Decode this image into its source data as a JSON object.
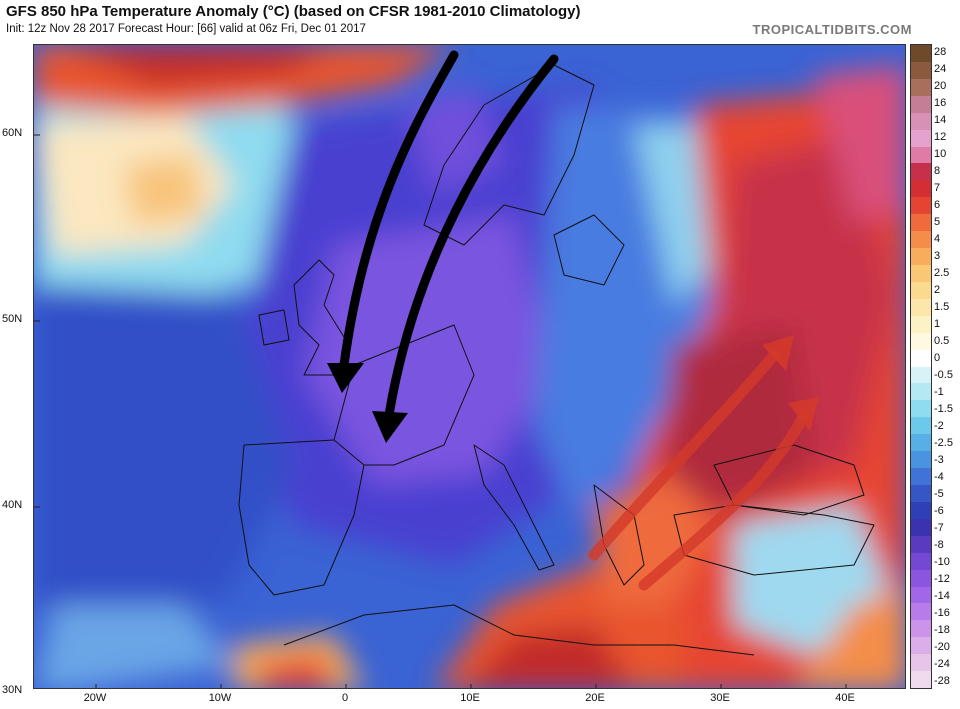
{
  "header": {
    "title": "GFS 850 hPa Temperature Anomaly (°C) (based on CFSR 1981-2010 Climatology)",
    "subtitle": "Init: 12z Nov 28 2017   Forecast Hour: [66]   valid at 06z Fri, Dec 01 2017",
    "brand": "TROPICALTIDBITS.COM"
  },
  "map": {
    "lat_labels": [
      "60N",
      "50N",
      "40N",
      "30N"
    ],
    "lon_labels": [
      "20W",
      "10W",
      "0",
      "10E",
      "20E",
      "30E",
      "40E"
    ],
    "annotations": {
      "black_arrows": "cold air flow southward over western Europe",
      "red_arrows": "warm air flow northeastward over eastern Europe"
    },
    "colors": {
      "cold_core": "#7b56e0",
      "cold": "#3f55d6",
      "cool": "#5a8fe6",
      "neutral": "#ffffff",
      "warm": "#e8542e",
      "hot": "#c22a2a"
    }
  },
  "legend": {
    "labels": [
      "28",
      "24",
      "20",
      "16",
      "14",
      "12",
      "10",
      "8",
      "7",
      "6",
      "5",
      "4",
      "3",
      "2.5",
      "2",
      "1.5",
      "1",
      "0.5",
      "0",
      "-0.5",
      "-1",
      "-1.5",
      "-2",
      "-2.5",
      "-3",
      "-4",
      "-5",
      "-6",
      "-7",
      "-8",
      "-10",
      "-12",
      "-14",
      "-16",
      "-18",
      "-20",
      "-24",
      "-28"
    ],
    "colors": [
      "#6e4a2b",
      "#8b5a3c",
      "#a8705c",
      "#c47f96",
      "#d891b6",
      "#e6a2cf",
      "#e07aa6",
      "#c7304a",
      "#d42d34",
      "#e64433",
      "#ef6a3d",
      "#f48d4a",
      "#f8ad5c",
      "#fac775",
      "#fbd98f",
      "#fce6a9",
      "#fdf1c6",
      "#fff9e2",
      "#ffffff",
      "#d8f3f7",
      "#b4e8f2",
      "#8fdbef",
      "#6cc9ec",
      "#58afe6",
      "#4a93e0",
      "#3f74d6",
      "#3656c6",
      "#2f3fb5",
      "#3b32b0",
      "#5a3bc0",
      "#7448d3",
      "#8c55e0",
      "#a266e8",
      "#b87cea",
      "#cc93ea",
      "#dcaee9",
      "#e7c5e8",
      "#f0dbee"
    ]
  }
}
